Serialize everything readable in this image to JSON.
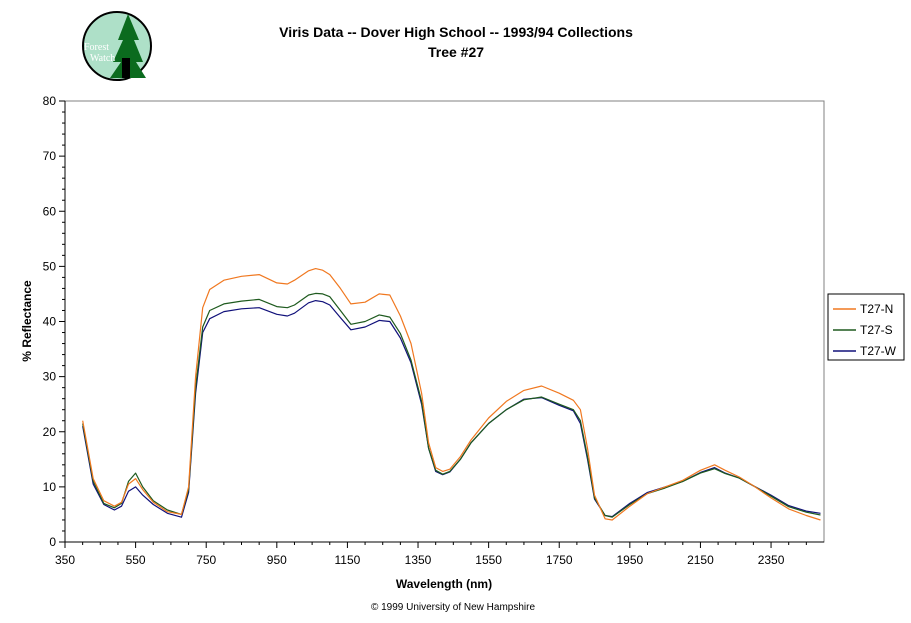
{
  "logo": {
    "line1": "Forest",
    "line2": "Watch"
  },
  "footer": "© 1999 University of New Hampshire",
  "colors": {
    "T27-N": "#f07820",
    "T27-S": "#1e5a1e",
    "T27-W": "#10107a",
    "axis": "#000000",
    "frame": "#808080"
  },
  "chart_data": {
    "type": "line",
    "title": "Viris Data -- Dover High School -- 1993/94 Collections",
    "subtitle": "Tree #27",
    "xlabel": "Wavelength (nm)",
    "ylabel": "% Reflectance",
    "xlim": [
      350,
      2500
    ],
    "ylim": [
      0,
      80
    ],
    "xticks": [
      350,
      550,
      750,
      950,
      1150,
      1350,
      1550,
      1750,
      1950,
      2150,
      2350
    ],
    "yticks": [
      0,
      10,
      20,
      30,
      40,
      50,
      60,
      70,
      80
    ],
    "grid": false,
    "legend_position": "right",
    "x": [
      400,
      430,
      460,
      490,
      510,
      530,
      550,
      570,
      600,
      640,
      680,
      700,
      720,
      740,
      760,
      800,
      850,
      900,
      950,
      980,
      1000,
      1040,
      1060,
      1080,
      1100,
      1130,
      1160,
      1200,
      1240,
      1270,
      1300,
      1330,
      1360,
      1380,
      1400,
      1420,
      1440,
      1470,
      1500,
      1550,
      1600,
      1650,
      1700,
      1750,
      1790,
      1810,
      1830,
      1850,
      1880,
      1900,
      1950,
      2000,
      2050,
      2100,
      2150,
      2190,
      2220,
      2260,
      2300,
      2350,
      2400,
      2450,
      2490
    ],
    "series": [
      {
        "name": "T27-N",
        "values": [
          22.0,
          11.5,
          7.5,
          6.5,
          7.2,
          10.5,
          11.5,
          9.5,
          7.2,
          5.5,
          5.0,
          10.0,
          30.0,
          42.5,
          45.8,
          47.5,
          48.2,
          48.5,
          47.0,
          46.8,
          47.5,
          49.2,
          49.6,
          49.3,
          48.5,
          46.0,
          43.2,
          43.5,
          45.0,
          44.8,
          41.0,
          36.0,
          27.0,
          18.0,
          13.5,
          12.8,
          13.2,
          15.5,
          18.5,
          22.5,
          25.5,
          27.5,
          28.3,
          27.0,
          25.7,
          24.0,
          17.0,
          8.5,
          4.2,
          4.0,
          6.5,
          8.8,
          10.0,
          11.2,
          13.0,
          14.0,
          13.0,
          11.8,
          10.2,
          8.0,
          6.0,
          4.8,
          4.0
        ]
      },
      {
        "name": "T27-S",
        "values": [
          21.5,
          11.0,
          7.0,
          6.2,
          7.0,
          11.0,
          12.5,
          10.0,
          7.5,
          5.8,
          5.0,
          9.5,
          28.0,
          39.0,
          42.0,
          43.2,
          43.7,
          44.0,
          42.7,
          42.5,
          43.0,
          44.8,
          45.1,
          45.0,
          44.5,
          42.0,
          39.5,
          40.0,
          41.2,
          40.8,
          37.8,
          33.0,
          25.5,
          17.0,
          13.0,
          12.3,
          12.8,
          15.0,
          18.0,
          21.5,
          24.0,
          25.8,
          26.3,
          25.0,
          24.0,
          22.0,
          15.5,
          8.0,
          4.8,
          4.5,
          6.8,
          8.8,
          9.8,
          11.0,
          12.5,
          13.3,
          12.4,
          11.6,
          10.2,
          8.3,
          6.4,
          5.4,
          4.9
        ]
      },
      {
        "name": "T27-W",
        "values": [
          21.0,
          10.5,
          6.8,
          5.8,
          6.5,
          9.2,
          10.0,
          8.5,
          6.8,
          5.2,
          4.5,
          9.0,
          27.0,
          38.0,
          40.5,
          41.8,
          42.3,
          42.5,
          41.3,
          41.0,
          41.5,
          43.4,
          43.8,
          43.6,
          43.0,
          40.7,
          38.5,
          39.0,
          40.2,
          40.0,
          37.0,
          32.5,
          25.0,
          17.0,
          12.8,
          12.2,
          12.7,
          15.0,
          18.0,
          21.5,
          24.0,
          25.9,
          26.2,
          24.8,
          23.8,
          21.5,
          15.0,
          7.8,
          4.8,
          4.6,
          7.0,
          9.0,
          10.0,
          11.0,
          12.6,
          13.5,
          12.5,
          11.6,
          10.2,
          8.5,
          6.6,
          5.6,
          5.2
        ]
      }
    ]
  }
}
